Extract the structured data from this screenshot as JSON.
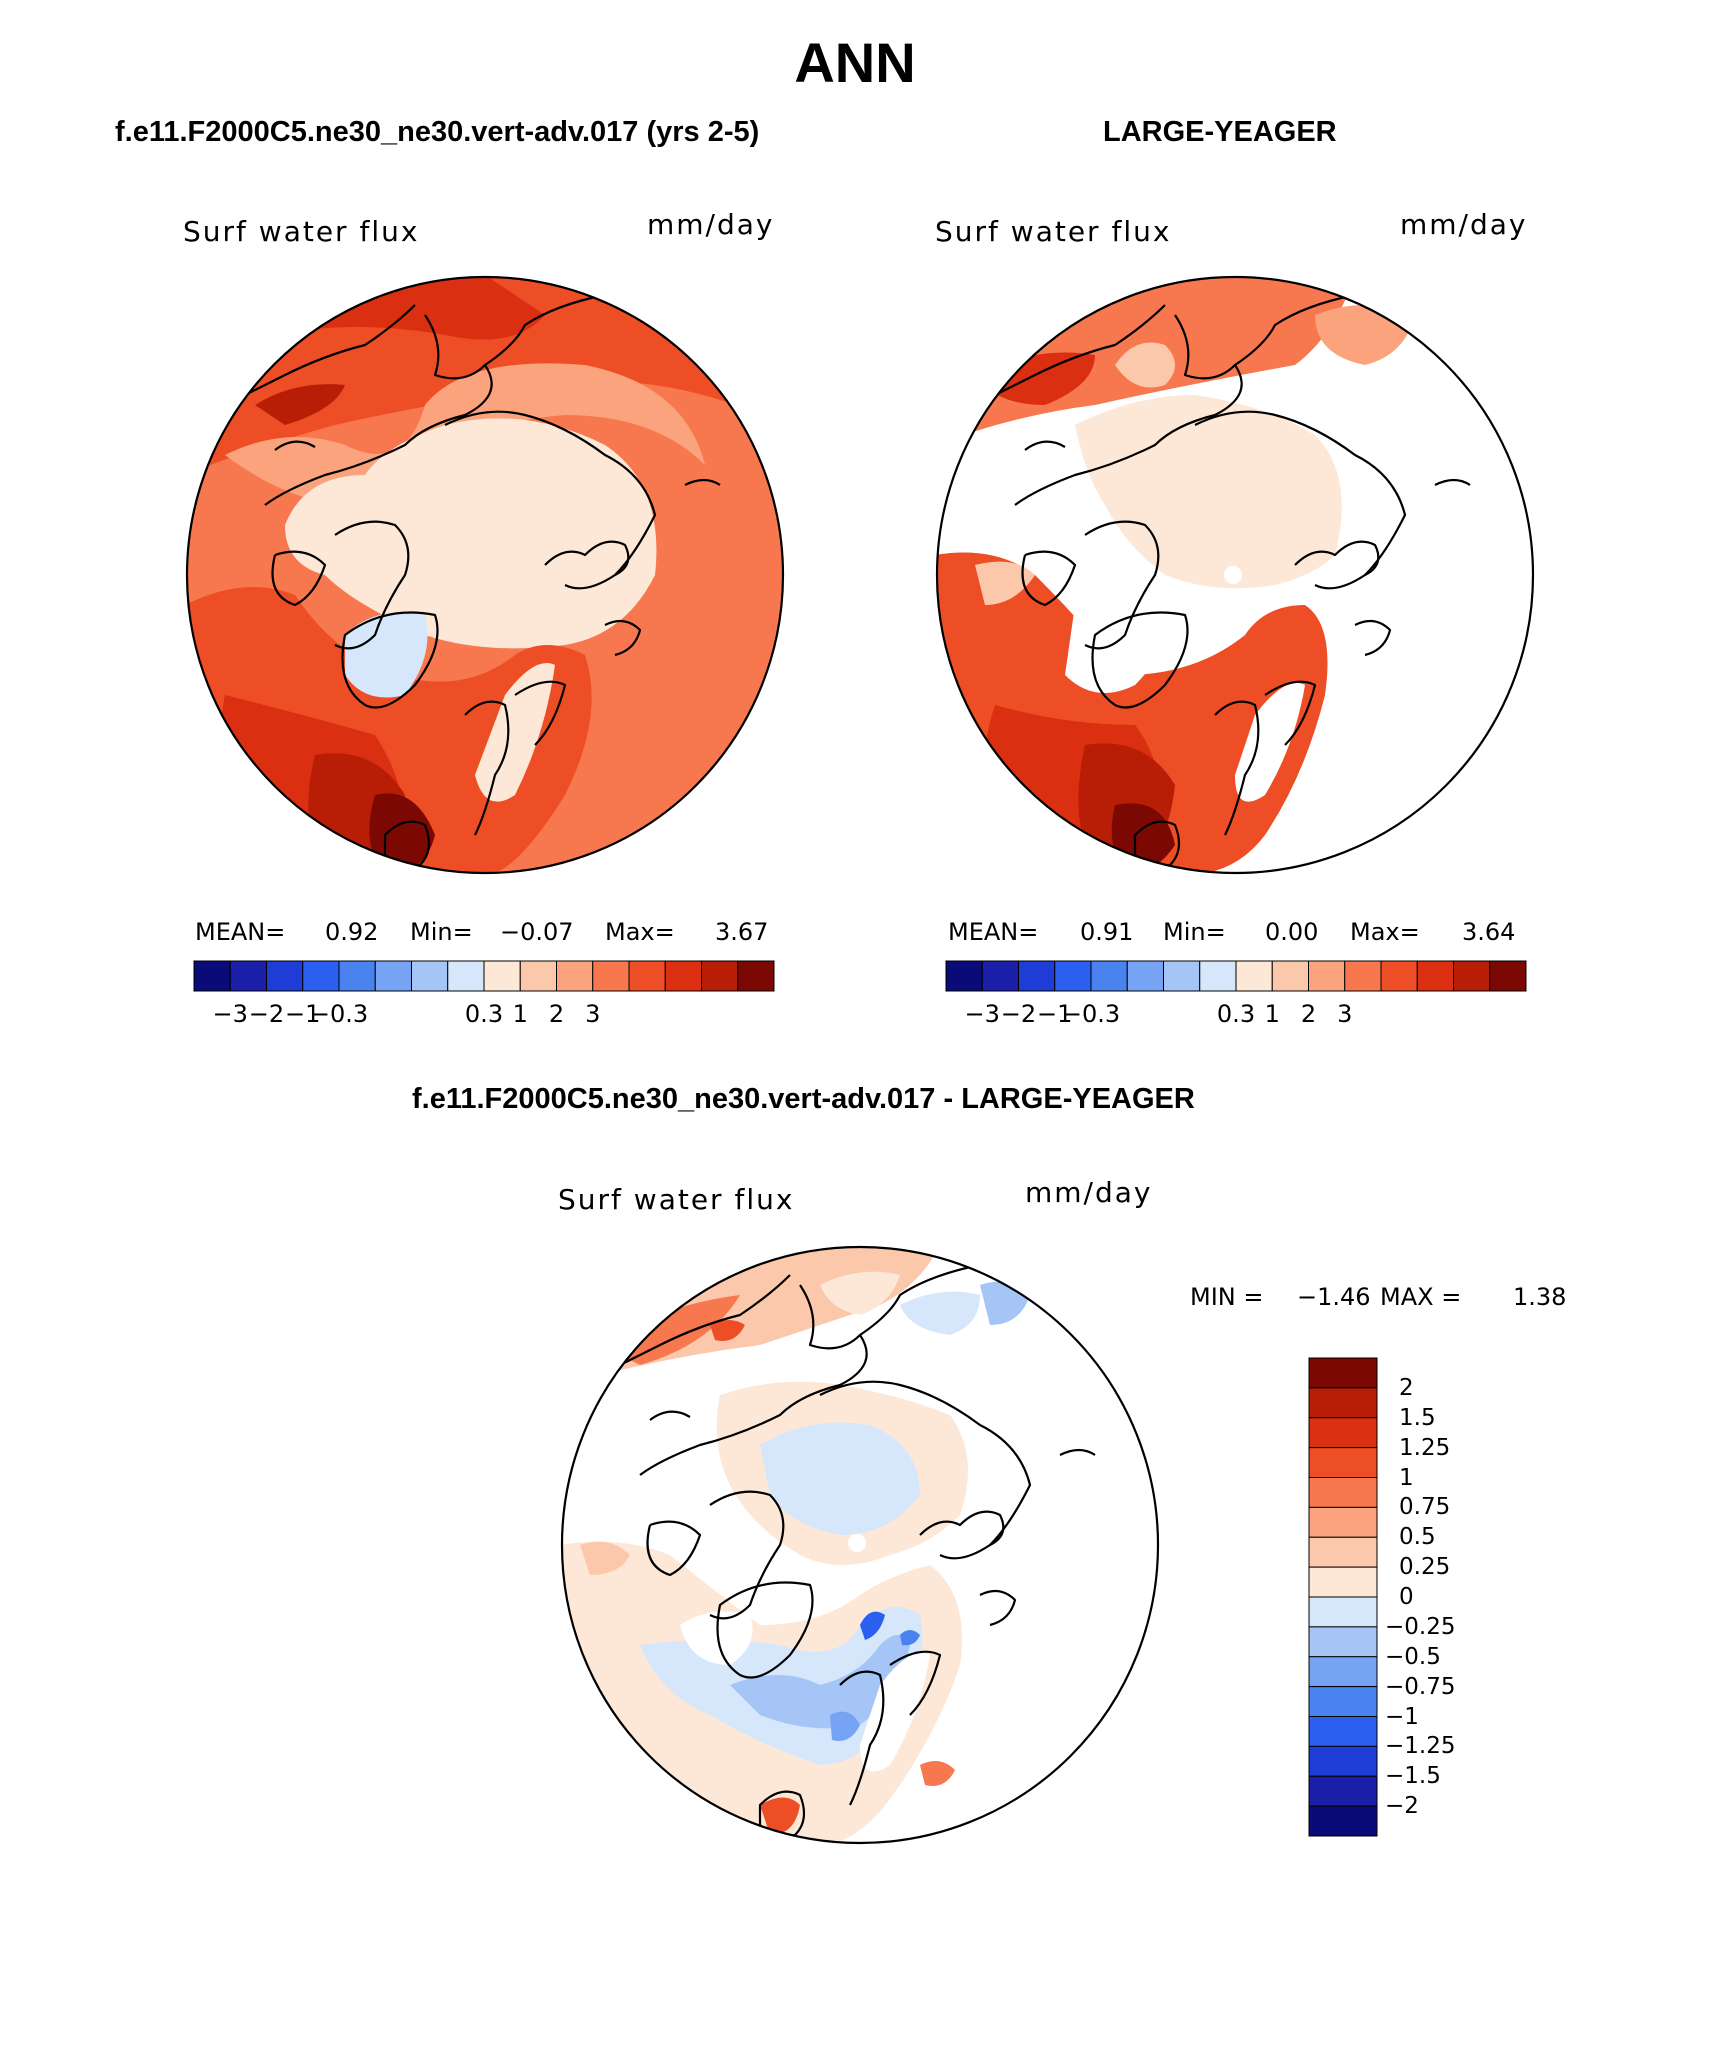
{
  "title": "ANN",
  "panels": [
    {
      "id": "test",
      "subtitle": "f.e11.F2000C5.ne30_ne30.vert-adv.017 (yrs 2-5)",
      "variable": "Surf water flux",
      "units": "mm/day",
      "stats": {
        "mean_label": "MEAN=",
        "mean": "0.92",
        "min_label": "Min=",
        "min": "−0.07",
        "max_label": "Max=",
        "max": "3.67"
      },
      "colorbar": {
        "colors": [
          "#0a0a78",
          "#1a1ea8",
          "#1e3cd6",
          "#2b5ff0",
          "#4a82f0",
          "#76a3f3",
          "#a6c5f7",
          "#d6e7fb",
          "#fde8d8",
          "#fcc8ac",
          "#fba37d",
          "#f7784e",
          "#ee4e25",
          "#da2f10",
          "#b81d06",
          "#7c0804"
        ],
        "tick_labels": [
          "−3",
          "−2",
          "−1",
          "−0.3",
          "0.3",
          "1",
          "2",
          "3"
        ]
      }
    },
    {
      "id": "control",
      "subtitle": "LARGE-YEAGER",
      "variable": "Surf water flux",
      "units": "mm/day",
      "stats": {
        "mean_label": "MEAN=",
        "mean": "0.91",
        "min_label": "Min=",
        "min": "0.00",
        "max_label": "Max=",
        "max": "3.64"
      },
      "colorbar": {
        "colors": [
          "#0a0a78",
          "#1a1ea8",
          "#1e3cd6",
          "#2b5ff0",
          "#4a82f0",
          "#76a3f3",
          "#a6c5f7",
          "#d6e7fb",
          "#fde8d8",
          "#fcc8ac",
          "#fba37d",
          "#f7784e",
          "#ee4e25",
          "#da2f10",
          "#b81d06",
          "#7c0804"
        ],
        "tick_labels": [
          "−3",
          "−2",
          "−1",
          "−0.3",
          "0.3",
          "1",
          "2",
          "3"
        ]
      }
    },
    {
      "id": "difference",
      "subtitle": "f.e11.F2000C5.ne30_ne30.vert-adv.017 - LARGE-YEAGER",
      "variable": "Surf water flux",
      "units": "mm/day",
      "stats": {
        "min_label": "MIN =",
        "min": "−1.46",
        "max_label": "MAX =",
        "max": "1.38"
      },
      "colorbar": {
        "colors": [
          "#7c0804",
          "#b81d06",
          "#da2f10",
          "#ee4e25",
          "#f7784e",
          "#fba37d",
          "#fcc8ac",
          "#fde8d8",
          "#d6e7fb",
          "#a6c5f7",
          "#76a3f3",
          "#4a82f0",
          "#2b5ff0",
          "#1e3cd6",
          "#1a1ea8",
          "#0a0a78"
        ],
        "tick_labels": [
          "2",
          "1.5",
          "1.25",
          "1",
          "0.75",
          "0.5",
          "0.25",
          "0",
          "−0.25",
          "−0.5",
          "−0.75",
          "−1",
          "−1.25",
          "−1.5",
          "−2"
        ]
      }
    }
  ]
}
